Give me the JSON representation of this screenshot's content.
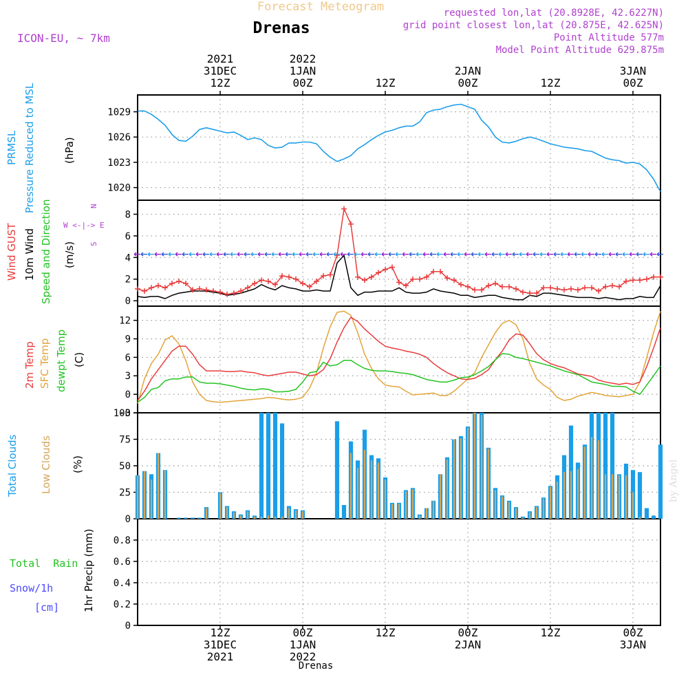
{
  "header": {
    "title": "Forecast Meteogram",
    "location": "Drenas",
    "model": "ICON-EU, ~ 7km",
    "requested": "requested lon,lat (20.8928E, 42.6227N)",
    "gridpoint": "grid point closest lon,lat (20.875E, 42.625N)",
    "altitude": "Point Altitude 577m",
    "model_altitude": "Model Point Altitude 629.875m",
    "footer_location": "Drenas",
    "credit": "by Angel"
  },
  "time_axis": {
    "top": [
      {
        "x": 12,
        "lines": [
          "2021",
          "31DEC",
          "12Z"
        ]
      },
      {
        "x": 24,
        "lines": [
          "2022",
          "1JAN",
          "00Z"
        ]
      },
      {
        "x": 36,
        "lines": [
          "12Z"
        ]
      },
      {
        "x": 48,
        "lines": [
          "2JAN",
          "00Z"
        ]
      },
      {
        "x": 60,
        "lines": [
          "12Z"
        ]
      },
      {
        "x": 72,
        "lines": [
          "3JAN",
          "00Z"
        ]
      }
    ],
    "bottom": [
      {
        "x": 12,
        "lines": [
          "12Z",
          "31DEC",
          "2021"
        ]
      },
      {
        "x": 24,
        "lines": [
          "00Z",
          "1JAN",
          "2022"
        ]
      },
      {
        "x": 36,
        "lines": [
          "12Z"
        ]
      },
      {
        "x": 48,
        "lines": [
          "00Z",
          "2JAN"
        ]
      },
      {
        "x": 60,
        "lines": [
          "12Z"
        ]
      },
      {
        "x": 72,
        "lines": [
          "00Z",
          "3JAN"
        ]
      }
    ]
  },
  "colors": {
    "pressure": "#1f9ee8",
    "gust": "#e83c3c",
    "wind": "#000000",
    "direction": "#2e5bd6",
    "temp2m": "#e83c3c",
    "sfc": "#e2a43a",
    "dewpt": "#22c322",
    "total_clouds": "#1a9ee8",
    "low_clouds": "#d4a65a",
    "rain": "#22c322",
    "snow": "#4a4aff",
    "purple": "#b040d0",
    "header_title": "#f0c98a"
  },
  "panels": {
    "pressure": {
      "labels": [
        "PRMSL",
        "Pressure Reduced to MSL",
        "(hPa)"
      ]
    },
    "wind": {
      "labels": [
        "Wind GUST",
        "10m Wind",
        "Speed and Direction",
        "(m/s)"
      ],
      "compass": [
        "N",
        "W <-|-> E",
        "S"
      ]
    },
    "temp": {
      "labels": [
        "2m Temp",
        "SFC Temp",
        "dewpt Temp",
        "(C)"
      ]
    },
    "clouds": {
      "labels": [
        "Total Clouds",
        "Low Clouds",
        "(%)"
      ]
    },
    "precip": {
      "labels": [
        "Total  Rain",
        "Snow/1h",
        "[cm]",
        "1hr Precip (mm)"
      ]
    }
  },
  "chart_data": [
    {
      "type": "line",
      "title": "PRMSL Pressure Reduced to MSL",
      "ylabel": "hPa",
      "ylim": [
        1018.5,
        1031
      ],
      "yticks": [
        1020,
        1023,
        1026,
        1029
      ],
      "xlim": [
        0,
        76
      ],
      "x": [
        0,
        1,
        2,
        3,
        4,
        5,
        6,
        7,
        8,
        9,
        10,
        11,
        12,
        13,
        14,
        15,
        16,
        17,
        18,
        19,
        20,
        21,
        22,
        23,
        24,
        25,
        26,
        27,
        28,
        29,
        30,
        31,
        32,
        33,
        34,
        35,
        36,
        37,
        38,
        39,
        40,
        41,
        42,
        43,
        44,
        45,
        46,
        47,
        48,
        49,
        50,
        51,
        52,
        53,
        54,
        55,
        56,
        57,
        58,
        59,
        60,
        61,
        62,
        63,
        64,
        65,
        66,
        67,
        68,
        69,
        70,
        71,
        72,
        73,
        74,
        75,
        76
      ],
      "series": [
        {
          "name": "PRMSL",
          "values": [
            1029.1,
            1029.1,
            1028.7,
            1028.1,
            1027.4,
            1026.3,
            1025.6,
            1025.5,
            1026.1,
            1026.9,
            1027.1,
            1026.9,
            1026.7,
            1026.5,
            1026.6,
            1026.2,
            1025.7,
            1025.9,
            1025.7,
            1025.0,
            1024.7,
            1024.8,
            1025.3,
            1025.3,
            1025.4,
            1025.4,
            1025.2,
            1024.3,
            1023.6,
            1023.1,
            1023.4,
            1023.8,
            1024.6,
            1025.1,
            1025.7,
            1026.2,
            1026.6,
            1026.8,
            1027.1,
            1027.3,
            1027.3,
            1027.8,
            1028.9,
            1029.2,
            1029.3,
            1029.6,
            1029.8,
            1029.9,
            1029.6,
            1029.3,
            1028.0,
            1027.2,
            1026.0,
            1025.4,
            1025.3,
            1025.5,
            1025.8,
            1026.0,
            1025.8,
            1025.5,
            1025.2,
            1025.0,
            1024.8,
            1024.7,
            1024.6,
            1024.4,
            1024.3,
            1023.9,
            1023.5,
            1023.3,
            1023.2,
            1022.9,
            1023.0,
            1022.8,
            1022.1,
            1021.0,
            1019.5
          ]
        }
      ]
    },
    {
      "type": "line",
      "title": "Wind GUST / 10m Wind Speed and Direction",
      "ylabel": "m/s",
      "ylim": [
        -0.5,
        9.3
      ],
      "yticks": [
        0,
        2,
        4,
        6,
        8
      ],
      "xlim": [
        0,
        76
      ],
      "x": [
        0,
        1,
        2,
        3,
        4,
        5,
        6,
        7,
        8,
        9,
        10,
        11,
        12,
        13,
        14,
        15,
        16,
        17,
        18,
        19,
        20,
        21,
        22,
        23,
        24,
        25,
        26,
        27,
        28,
        29,
        30,
        31,
        32,
        33,
        34,
        35,
        36,
        37,
        38,
        39,
        40,
        41,
        42,
        43,
        44,
        45,
        46,
        47,
        48,
        49,
        50,
        51,
        52,
        53,
        54,
        55,
        56,
        57,
        58,
        59,
        60,
        61,
        62,
        63,
        64,
        65,
        66,
        67,
        68,
        69,
        70,
        71,
        72,
        73,
        74,
        75,
        76
      ],
      "series": [
        {
          "name": "Wind GUST",
          "values": [
            1.1,
            0.9,
            1.2,
            1.4,
            1.2,
            1.6,
            1.8,
            1.6,
            1.0,
            1.1,
            1.0,
            0.9,
            0.8,
            0.6,
            0.7,
            0.9,
            1.2,
            1.6,
            1.9,
            1.8,
            1.5,
            2.3,
            2.2,
            2.0,
            1.6,
            1.3,
            1.8,
            2.3,
            2.4,
            4.2,
            8.5,
            7.1,
            2.2,
            1.9,
            2.2,
            2.6,
            2.9,
            3.1,
            1.7,
            1.4,
            2.0,
            2.0,
            2.2,
            2.7,
            2.7,
            2.1,
            1.9,
            1.5,
            1.3,
            1.0,
            1.0,
            1.4,
            1.6,
            1.3,
            1.3,
            1.1,
            0.8,
            0.7,
            0.7,
            1.2,
            1.2,
            1.1,
            1.0,
            1.1,
            1.0,
            1.2,
            1.2,
            0.9,
            1.3,
            1.4,
            1.3,
            1.8,
            1.9,
            1.9,
            2.0,
            2.2,
            2.2
          ]
        },
        {
          "name": "10m Wind",
          "values": [
            0.4,
            0.3,
            0.4,
            0.4,
            0.2,
            0.5,
            0.7,
            0.8,
            0.9,
            0.9,
            0.9,
            0.8,
            0.7,
            0.5,
            0.6,
            0.7,
            0.9,
            1.1,
            1.5,
            1.2,
            1.0,
            1.4,
            1.2,
            1.1,
            0.9,
            0.9,
            1.0,
            0.9,
            0.9,
            3.5,
            4.2,
            1.2,
            0.5,
            0.8,
            0.8,
            0.9,
            0.9,
            0.9,
            1.2,
            0.8,
            0.7,
            0.7,
            0.8,
            1.1,
            0.9,
            0.8,
            0.7,
            0.5,
            0.5,
            0.3,
            0.4,
            0.5,
            0.5,
            0.3,
            0.2,
            0.1,
            0.1,
            0.5,
            0.4,
            0.7,
            0.7,
            0.6,
            0.5,
            0.4,
            0.3,
            0.3,
            0.3,
            0.2,
            0.3,
            0.2,
            0.1,
            0.2,
            0.2,
            0.4,
            0.3,
            0.3,
            1.4
          ]
        }
      ],
      "direction_arrows_y": 4.3
    },
    {
      "type": "line",
      "title": "2m Temp / SFC Temp / dewpt Temp",
      "ylabel": "C",
      "ylim": [
        -3,
        14.3
      ],
      "yticks": [
        -3,
        0,
        3,
        6,
        9,
        12
      ],
      "xlim": [
        0,
        76
      ],
      "x": [
        0,
        1,
        2,
        3,
        4,
        5,
        6,
        7,
        8,
        9,
        10,
        11,
        12,
        13,
        14,
        15,
        16,
        17,
        18,
        19,
        20,
        21,
        22,
        23,
        24,
        25,
        26,
        27,
        28,
        29,
        30,
        31,
        32,
        33,
        34,
        35,
        36,
        37,
        38,
        39,
        40,
        41,
        42,
        43,
        44,
        45,
        46,
        47,
        48,
        49,
        50,
        51,
        52,
        53,
        54,
        55,
        56,
        57,
        58,
        59,
        60,
        61,
        62,
        63,
        64,
        65,
        66,
        67,
        68,
        69,
        70,
        71,
        72,
        73,
        74,
        75,
        76
      ],
      "series": [
        {
          "name": "2m Temp",
          "values": [
            -1.0,
            0.5,
            2.5,
            4.0,
            5.5,
            7.0,
            7.8,
            7.8,
            6.5,
            4.8,
            3.8,
            3.8,
            3.8,
            3.7,
            3.7,
            3.8,
            3.6,
            3.5,
            3.2,
            3.0,
            3.2,
            3.4,
            3.6,
            3.6,
            3.3,
            3.0,
            3.2,
            4.0,
            5.8,
            8.5,
            10.8,
            12.5,
            11.8,
            10.6,
            9.6,
            8.6,
            7.8,
            7.5,
            7.3,
            7.0,
            6.8,
            6.5,
            6.0,
            5.0,
            4.2,
            3.5,
            3.0,
            2.5,
            2.4,
            2.6,
            3.2,
            4.0,
            5.6,
            7.0,
            8.8,
            9.8,
            9.6,
            8.2,
            6.6,
            5.6,
            5.0,
            4.6,
            4.3,
            3.8,
            3.3,
            3.1,
            2.9,
            2.3,
            2.0,
            1.8,
            1.6,
            1.8,
            1.6,
            2.0,
            4.5,
            7.5,
            10.8
          ]
        },
        {
          "name": "SFC Temp",
          "values": [
            -1.5,
            2.5,
            5.0,
            6.5,
            8.8,
            9.5,
            8.2,
            5.5,
            2.0,
            0.0,
            -1.0,
            -1.2,
            -1.3,
            -1.2,
            -1.1,
            -1.0,
            -0.9,
            -0.8,
            -0.7,
            -0.5,
            -0.6,
            -0.8,
            -0.9,
            -0.8,
            -0.5,
            1.0,
            3.5,
            7.5,
            11.0,
            13.3,
            13.5,
            12.8,
            10.0,
            6.5,
            4.2,
            2.5,
            1.5,
            1.3,
            1.2,
            0.5,
            -0.1,
            0.0,
            0.1,
            0.2,
            -0.2,
            -0.2,
            0.5,
            1.5,
            2.5,
            3.5,
            6.0,
            8.0,
            10.0,
            11.5,
            12.0,
            11.3,
            9.0,
            5.0,
            2.5,
            1.5,
            0.8,
            -0.5,
            -1.0,
            -0.8,
            -0.3,
            0.0,
            0.3,
            0.1,
            -0.2,
            -0.3,
            -0.4,
            -0.2,
            0.0,
            2.0,
            6.0,
            10.0,
            13.5
          ]
        },
        {
          "name": "dewpt Temp",
          "values": [
            -1.3,
            -0.5,
            0.8,
            1.1,
            2.2,
            2.5,
            2.5,
            2.8,
            2.8,
            2.0,
            1.8,
            1.8,
            1.7,
            1.5,
            1.3,
            1.0,
            0.8,
            0.7,
            0.9,
            0.8,
            0.4,
            0.4,
            0.5,
            0.8,
            2.0,
            3.5,
            3.7,
            5.2,
            4.6,
            4.8,
            5.5,
            5.5,
            4.8,
            4.2,
            3.9,
            3.8,
            3.8,
            3.7,
            3.5,
            3.4,
            3.2,
            2.8,
            2.4,
            2.2,
            2.0,
            2.0,
            2.3,
            2.7,
            2.8,
            3.2,
            3.8,
            4.5,
            5.6,
            6.6,
            6.5,
            6.0,
            5.8,
            5.5,
            5.2,
            4.9,
            4.6,
            4.2,
            3.8,
            3.5,
            3.2,
            2.6,
            2.0,
            1.8,
            1.6,
            1.3,
            1.3,
            1.2,
            0.5,
            0.0,
            1.5,
            3.0,
            4.6
          ]
        }
      ]
    },
    {
      "type": "bar",
      "title": "Total Clouds / Low Clouds",
      "ylabel": "%",
      "ylim": [
        0,
        100
      ],
      "yticks": [
        0,
        25,
        50,
        75,
        100
      ],
      "xlim": [
        0,
        76
      ],
      "x": [
        0,
        1,
        2,
        3,
        4,
        5,
        6,
        7,
        8,
        9,
        10,
        11,
        12,
        13,
        14,
        15,
        16,
        17,
        18,
        19,
        20,
        21,
        22,
        23,
        24,
        25,
        26,
        27,
        28,
        29,
        30,
        31,
        32,
        33,
        34,
        35,
        36,
        37,
        38,
        39,
        40,
        41,
        42,
        43,
        44,
        45,
        46,
        47,
        48,
        49,
        50,
        51,
        52,
        53,
        54,
        55,
        56,
        57,
        58,
        59,
        60,
        61,
        62,
        63,
        64,
        65,
        66,
        67,
        68,
        69,
        70,
        71,
        72,
        73,
        74,
        75,
        76
      ],
      "series": [
        {
          "name": "Total Clouds",
          "values": [
            41,
            45,
            42,
            62,
            46,
            0,
            1,
            1,
            1,
            1,
            11,
            0,
            25,
            12,
            7,
            4,
            8,
            3,
            100,
            100,
            100,
            90,
            12,
            9,
            8,
            0,
            0,
            0,
            0,
            92,
            13,
            73,
            55,
            84,
            60,
            57,
            39,
            15,
            15,
            27,
            29,
            4,
            10,
            17,
            42,
            58,
            75,
            78,
            87,
            100,
            100,
            67,
            29,
            22,
            17,
            11,
            2,
            7,
            12,
            20,
            31,
            41,
            60,
            88,
            53,
            70,
            100,
            100,
            100,
            100,
            42,
            52,
            46,
            44,
            10,
            3,
            70
          ]
        },
        {
          "name": "Low Clouds",
          "values": [
            41,
            45,
            37,
            62,
            46,
            0,
            0,
            0,
            0,
            0,
            10,
            0,
            24,
            11,
            6,
            3,
            7,
            2,
            2,
            3,
            2,
            2,
            10,
            8,
            7,
            0,
            0,
            0,
            0,
            0,
            0,
            62,
            48,
            65,
            55,
            53,
            37,
            14,
            14,
            26,
            28,
            3,
            10,
            17,
            42,
            56,
            75,
            76,
            86,
            100,
            98,
            66,
            27,
            21,
            16,
            10,
            1,
            6,
            11,
            19,
            30,
            35,
            44,
            45,
            47,
            68,
            77,
            74,
            42,
            42,
            41,
            41,
            25,
            2,
            0,
            0,
            0
          ]
        }
      ]
    },
    {
      "type": "bar",
      "title": "1hr Precip",
      "ylabel": "1hr Precip (mm)",
      "ylim": [
        0,
        1
      ],
      "yticks": [
        0,
        0.2,
        0.4,
        0.6,
        0.8
      ],
      "ytick_labels": [
        "0",
        "0.2",
        "0.4",
        "0.6",
        "0.8"
      ],
      "xlim": [
        0,
        76
      ],
      "series": [
        {
          "name": "Total Rain",
          "values": []
        },
        {
          "name": "Snow/1h",
          "values": []
        }
      ]
    }
  ]
}
